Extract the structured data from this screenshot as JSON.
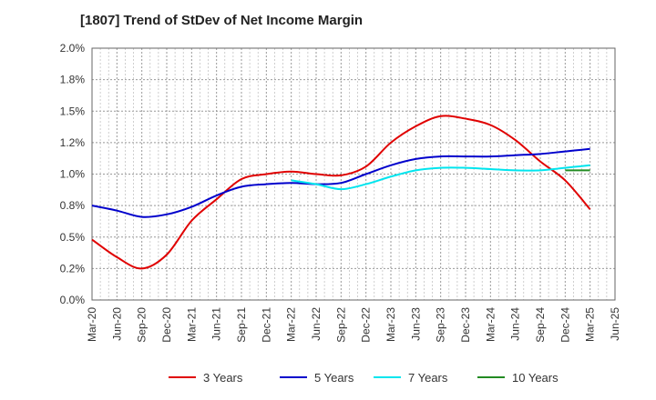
{
  "chart_data": {
    "type": "line",
    "title": "[1807]  Trend of StDev of Net Income Margin",
    "xlabel": "",
    "ylabel": "",
    "x_ticks": [
      "Mar-20",
      "Jun-20",
      "Sep-20",
      "Dec-20",
      "Mar-21",
      "Jun-21",
      "Sep-21",
      "Dec-21",
      "Mar-22",
      "Jun-22",
      "Sep-22",
      "Dec-22",
      "Mar-23",
      "Jun-23",
      "Sep-23",
      "Dec-23",
      "Mar-24",
      "Jun-24",
      "Sep-24",
      "Dec-24",
      "Mar-25",
      "Jun-25"
    ],
    "y_ticks": [
      "0.0%",
      "0.2%",
      "0.5%",
      "0.8%",
      "1.0%",
      "1.2%",
      "1.5%",
      "1.8%",
      "2.0%"
    ],
    "ylim": [
      0,
      2.0
    ],
    "grid": true,
    "legend_position": "bottom",
    "series": [
      {
        "name": "3 Years",
        "color": "#e00000",
        "x": [
          "Mar-20",
          "Jun-20",
          "Sep-20",
          "Dec-20",
          "Mar-21",
          "Jun-21",
          "Sep-21",
          "Dec-21",
          "Mar-22",
          "Jun-22",
          "Sep-22",
          "Dec-22",
          "Mar-23",
          "Jun-23",
          "Sep-23",
          "Dec-23",
          "Mar-24",
          "Jun-24",
          "Sep-24",
          "Dec-24",
          "Mar-25"
        ],
        "values": [
          0.48,
          0.34,
          0.25,
          0.36,
          0.63,
          0.8,
          0.96,
          1.0,
          1.02,
          1.0,
          0.99,
          1.06,
          1.25,
          1.38,
          1.46,
          1.44,
          1.39,
          1.27,
          1.1,
          0.95,
          0.72
        ]
      },
      {
        "name": "5 Years",
        "color": "#0000cc",
        "x": [
          "Mar-20",
          "Jun-20",
          "Sep-20",
          "Dec-20",
          "Mar-21",
          "Jun-21",
          "Sep-21",
          "Dec-21",
          "Mar-22",
          "Jun-22",
          "Sep-22",
          "Dec-22",
          "Mar-23",
          "Jun-23",
          "Sep-23",
          "Dec-23",
          "Mar-24",
          "Jun-24",
          "Sep-24",
          "Dec-24",
          "Mar-25"
        ],
        "values": [
          0.75,
          0.71,
          0.66,
          0.68,
          0.74,
          0.83,
          0.9,
          0.92,
          0.93,
          0.92,
          0.93,
          1.0,
          1.07,
          1.12,
          1.14,
          1.14,
          1.14,
          1.15,
          1.16,
          1.18,
          1.2
        ]
      },
      {
        "name": "7 Years",
        "color": "#00e5ee",
        "x": [
          "Mar-22",
          "Jun-22",
          "Sep-22",
          "Dec-22",
          "Mar-23",
          "Jun-23",
          "Sep-23",
          "Dec-23",
          "Mar-24",
          "Jun-24",
          "Sep-24",
          "Dec-24",
          "Mar-25"
        ],
        "values": [
          0.95,
          0.92,
          0.88,
          0.92,
          0.98,
          1.03,
          1.05,
          1.05,
          1.04,
          1.03,
          1.03,
          1.05,
          1.07
        ]
      },
      {
        "name": "10 Years",
        "color": "#228b22",
        "x": [
          "Dec-24",
          "Mar-25"
        ],
        "values": [
          1.03,
          1.03
        ]
      }
    ]
  }
}
